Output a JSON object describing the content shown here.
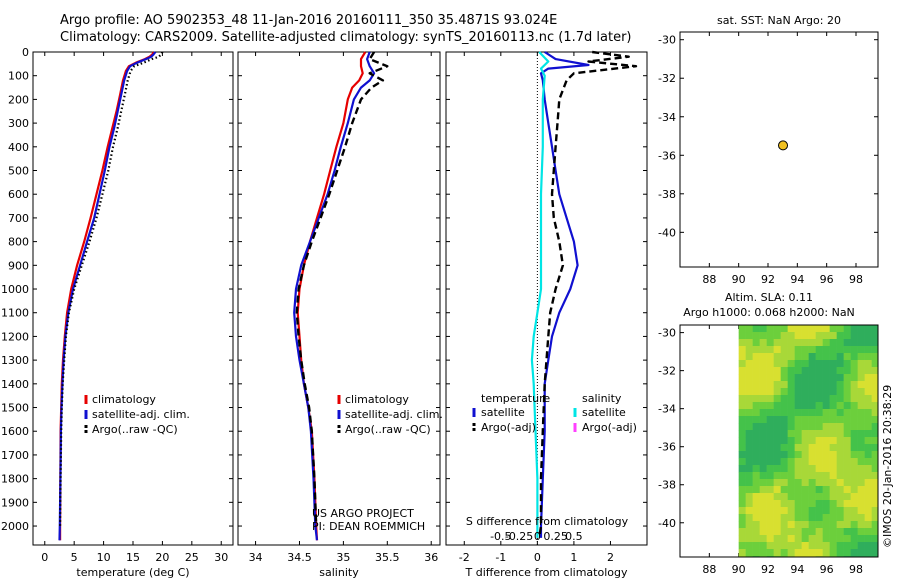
{
  "header": {
    "line1": "Argo profile: AO 5902353_48 11-Jan-2016 20160111_350 35.4871S 93.024E",
    "line2": "Climatology: CARS2009. Satellite-adjusted climatology: synTS_20160113.nc (1.7d later)"
  },
  "credit": "©IMOS 20-Jan-2016 20:38:29",
  "colors": {
    "climatology": "#e60000",
    "satellite": "#1010d0",
    "argo": "#000000",
    "s_satellite": "#00e5e5",
    "s_argo": "#ff40ff",
    "dot": "#f0c020"
  },
  "chart_data": [
    {
      "id": "temperature",
      "type": "line",
      "xlabel": "temperature (deg C)",
      "ylabel": "",
      "xlim": [
        -2,
        32
      ],
      "ylim": [
        2080,
        0
      ],
      "y_reversed": true,
      "xticks": [
        0,
        5,
        10,
        15,
        20,
        25,
        30
      ],
      "yticks": [
        0,
        100,
        200,
        300,
        400,
        500,
        600,
        700,
        800,
        900,
        1000,
        1100,
        1200,
        1300,
        1400,
        1500,
        1600,
        1700,
        1800,
        1900,
        2000
      ],
      "legend": [
        {
          "label": "climatology",
          "color": "#e60000"
        },
        {
          "label": "satellite-adj. clim.",
          "color": "#1010d0"
        },
        {
          "label": "Argo(..raw -QC)",
          "color": "#000000"
        }
      ],
      "series": [
        {
          "name": "climatology",
          "style": "solid",
          "x": [
            18.5,
            18.3,
            17.8,
            17,
            15.5,
            14.3,
            13.8,
            13.3,
            12.8,
            12.2,
            11.5,
            10.7,
            9.8,
            8.8,
            7.8,
            6.7,
            5.5,
            4.5,
            3.8,
            3.4,
            3.1,
            2.9,
            2.8,
            2.7,
            2.65,
            2.6,
            2.6
          ],
          "y": [
            0,
            10,
            20,
            30,
            45,
            60,
            80,
            120,
            180,
            250,
            320,
            400,
            500,
            600,
            700,
            800,
            900,
            1000,
            1100,
            1200,
            1300,
            1400,
            1500,
            1600,
            1800,
            2000,
            2060
          ]
        },
        {
          "name": "satellite-adj. clim.",
          "style": "solid",
          "x": [
            18.8,
            18.5,
            18.1,
            17.2,
            15.7,
            14.5,
            14,
            13.5,
            13,
            12.4,
            11.8,
            11,
            10.2,
            9.3,
            8.4,
            7.2,
            6,
            4.8,
            4,
            3.5,
            3.2,
            3,
            2.85,
            2.75,
            2.65,
            2.55,
            2.5
          ],
          "y": [
            0,
            10,
            20,
            30,
            45,
            60,
            80,
            120,
            180,
            250,
            320,
            400,
            500,
            600,
            700,
            800,
            900,
            1000,
            1100,
            1200,
            1300,
            1400,
            1500,
            1600,
            1800,
            2000,
            2060
          ]
        },
        {
          "name": "Argo",
          "style": "dotted",
          "x": [
            20,
            19.8,
            19.4,
            18.2,
            16.8,
            15.2,
            14.6,
            14.1,
            13.6,
            13,
            12.4,
            11.6,
            10.8,
            9.8,
            8.8,
            7.6,
            6.3,
            5,
            4.1,
            3.6,
            3.3,
            3.05,
            2.9,
            2.8,
            2.7,
            2.6
          ],
          "y": [
            0,
            10,
            20,
            30,
            45,
            60,
            80,
            120,
            180,
            250,
            320,
            400,
            500,
            600,
            700,
            800,
            900,
            1000,
            1100,
            1200,
            1300,
            1400,
            1500,
            1600,
            1800,
            2000
          ]
        }
      ]
    },
    {
      "id": "salinity",
      "type": "line",
      "xlabel": "salinity",
      "ylabel": "",
      "xlim": [
        33.8,
        36.1
      ],
      "ylim": [
        2080,
        0
      ],
      "y_reversed": true,
      "xticks": [
        34,
        34.5,
        35,
        35.5,
        36
      ],
      "legend": [
        {
          "label": "climatology",
          "color": "#e60000"
        },
        {
          "label": "satellite-adj. clim.",
          "color": "#1010d0"
        },
        {
          "label": "Argo(..raw -QC)",
          "color": "#000000"
        }
      ],
      "annotations": [
        "US ARGO PROJECT",
        "PI: DEAN ROEMMICH"
      ],
      "series": [
        {
          "name": "climatology",
          "style": "solid",
          "x": [
            35.25,
            35.2,
            35.2,
            35.22,
            35.18,
            35.1,
            35.05,
            35.0,
            34.92,
            34.85,
            34.78,
            34.7,
            34.62,
            34.55,
            34.5,
            34.48,
            34.5,
            34.52,
            34.55,
            34.6,
            34.64,
            34.67,
            34.69,
            34.7
          ],
          "y": [
            0,
            30,
            60,
            90,
            120,
            150,
            200,
            300,
            400,
            500,
            600,
            700,
            800,
            900,
            1000,
            1100,
            1200,
            1300,
            1400,
            1500,
            1600,
            1800,
            2000,
            2060
          ]
        },
        {
          "name": "satellite-adj. clim.",
          "style": "solid",
          "x": [
            35.3,
            35.27,
            35.3,
            35.35,
            35.3,
            35.2,
            35.12,
            35.05,
            34.97,
            34.9,
            34.82,
            34.72,
            34.62,
            34.52,
            34.46,
            34.44,
            34.46,
            34.5,
            34.55,
            34.6,
            34.63,
            34.66,
            34.68,
            34.7
          ],
          "y": [
            0,
            30,
            60,
            90,
            120,
            150,
            200,
            300,
            400,
            500,
            600,
            700,
            800,
            900,
            1000,
            1100,
            1200,
            1300,
            1400,
            1500,
            1600,
            1800,
            2000,
            2060
          ]
        },
        {
          "name": "Argo",
          "style": "dashed",
          "x": [
            35.35,
            35.3,
            35.5,
            35.3,
            35.45,
            35.32,
            35.2,
            35.1,
            35.02,
            34.93,
            34.84,
            34.74,
            34.64,
            34.55,
            34.49,
            34.47,
            34.49,
            34.52,
            34.56,
            34.61,
            34.64,
            34.67,
            34.69
          ],
          "y": [
            0,
            30,
            60,
            90,
            120,
            150,
            200,
            300,
            400,
            500,
            600,
            700,
            800,
            900,
            1000,
            1100,
            1200,
            1300,
            1400,
            1500,
            1600,
            1800,
            2000
          ]
        }
      ]
    },
    {
      "id": "difference",
      "type": "line",
      "xlabel": "T difference from climatology",
      "top_label": "S difference from climatology",
      "xlim": [
        -2.5,
        3.0
      ],
      "ylim": [
        2080,
        0
      ],
      "y_reversed": true,
      "xticks": [
        -2,
        -1,
        0,
        1,
        2
      ],
      "s_ticks": [
        {
          "value": -0.5,
          "label": "-0.5"
        },
        {
          "value": -0.25,
          "label": "-0.25"
        },
        {
          "value": 0,
          "label": "0"
        },
        {
          "value": 0.25,
          "label": "0.25"
        },
        {
          "value": 0.5,
          "label": "0.5"
        }
      ],
      "legend_groups": [
        {
          "title": "temperature",
          "entries": [
            {
              "label": "satellite",
              "color": "#1010d0"
            },
            {
              "label": "Argo(-adj)",
              "color": "#000000"
            }
          ]
        },
        {
          "title": "salinity",
          "entries": [
            {
              "label": "satellite",
              "color": "#00e5e5"
            },
            {
              "label": "Argo(-adj)",
              "color": "#ff40ff"
            }
          ]
        }
      ],
      "series": [
        {
          "name": "T satellite",
          "style": "solid",
          "color": "#1010d0",
          "x": [
            0.2,
            0.5,
            1.4,
            0.3,
            0.1,
            0.15,
            0.2,
            0.3,
            0.4,
            0.5,
            0.6,
            0.8,
            1.0,
            1.1,
            0.9,
            0.6,
            0.4,
            0.3,
            0.2,
            0.2,
            0.15,
            0.1,
            0.1
          ],
          "y": [
            0,
            30,
            55,
            70,
            90,
            120,
            200,
            300,
            400,
            500,
            600,
            700,
            800,
            900,
            1000,
            1100,
            1200,
            1300,
            1400,
            1600,
            1800,
            2000,
            2050
          ]
        },
        {
          "name": "T Argo(-adj)",
          "style": "dashed",
          "color": "#000000",
          "x": [
            1.5,
            2.5,
            1.4,
            2.7,
            1.0,
            0.8,
            0.6,
            0.55,
            0.5,
            0.45,
            0.4,
            0.45,
            0.6,
            0.7,
            0.5,
            0.35,
            0.3,
            0.25,
            0.2,
            0.15,
            0.1,
            0.1,
            0.05
          ],
          "y": [
            0,
            20,
            40,
            60,
            90,
            120,
            200,
            300,
            400,
            500,
            600,
            700,
            800,
            900,
            1000,
            1100,
            1200,
            1300,
            1400,
            1600,
            1800,
            2000,
            2050
          ]
        },
        {
          "name": "S satellite",
          "style": "solid",
          "color": "#00e5e5",
          "x": [
            0.05,
            0.3,
            0.1,
            0.2,
            0.15,
            0.15,
            0.1,
            0.1,
            0.1,
            0.1,
            0.05,
            0.0,
            -0.1,
            -0.15,
            -0.1,
            -0.05,
            0.0,
            0.0
          ],
          "y": [
            0,
            40,
            70,
            100,
            200,
            400,
            600,
            800,
            900,
            1000,
            1050,
            1100,
            1200,
            1300,
            1400,
            1600,
            1800,
            2050
          ]
        }
      ]
    },
    {
      "id": "sst_map",
      "type": "scatter",
      "title": "sat. SST: NaN Argo: 20",
      "xlim": [
        86,
        99.5
      ],
      "ylim": [
        -41.8,
        -29.6
      ],
      "xticks": [
        88,
        90,
        92,
        94,
        96,
        98
      ],
      "yticks": [
        -30,
        -32,
        -34,
        -36,
        -38,
        -40
      ],
      "points": [
        {
          "x": 93.024,
          "y": -35.4871
        }
      ]
    },
    {
      "id": "sla_map",
      "type": "heatmap",
      "title_line1": "Altim. SLA: 0.11",
      "title_line2": "Argo h1000: 0.068 h2000: NaN",
      "xlim": [
        86,
        99.5
      ],
      "ylim": [
        -41.8,
        -29.6
      ],
      "xticks": [
        88,
        90,
        92,
        94,
        96,
        98
      ],
      "yticks": [
        -30,
        -32,
        -34,
        -36,
        -38,
        -40
      ],
      "data_lon_range": [
        90,
        99.5
      ]
    }
  ]
}
